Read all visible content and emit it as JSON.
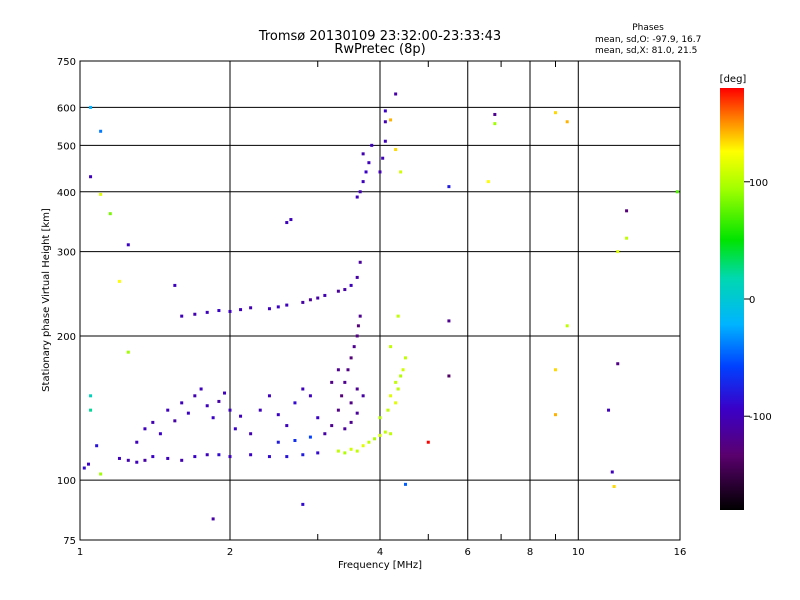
{
  "chart_data": [
    {
      "type": "scatter",
      "title": "Tromsø 20130109 23:32:00-23:33:43",
      "subtitle": "RwPretec (8p)",
      "xlabel": "Frequency [MHz]",
      "ylabel": "Stationary phase Virtual Height [km]",
      "x_scale": "log",
      "y_scale": "log",
      "xlim": [
        1,
        16
      ],
      "ylim": [
        75,
        750
      ],
      "x_ticks": [
        1,
        2,
        4,
        6,
        8,
        10,
        16
      ],
      "x_tick_labels": [
        "1",
        "2",
        "4",
        "6",
        "8",
        "10",
        "16"
      ],
      "x_minor_ticks": [
        3,
        5,
        7,
        9
      ],
      "y_ticks": [
        75,
        100,
        200,
        300,
        400,
        500,
        600,
        750
      ],
      "y_tick_labels": [
        "75",
        "100",
        "200",
        "300",
        "400",
        "500",
        "600",
        "750"
      ],
      "grid": true,
      "stats_heading": "Phases",
      "stats_lines": [
        "mean, sd,O: -97.9, 16.7",
        "mean, sd,X:  81.0, 21.5"
      ],
      "color_metric": "phase (deg)",
      "series": [
        {
          "points": [
            [
              1.02,
              106,
              -90
            ],
            [
              1.04,
              108,
              -95
            ],
            [
              1.08,
              118,
              -85
            ],
            [
              1.2,
              111,
              -100
            ],
            [
              1.25,
              110,
              -105
            ],
            [
              1.3,
              109,
              -100
            ],
            [
              1.35,
              110,
              -110
            ],
            [
              1.4,
              112,
              -95
            ],
            [
              1.5,
              111,
              -100
            ],
            [
              1.6,
              110,
              -105
            ],
            [
              1.7,
              112,
              -95
            ],
            [
              1.8,
              113,
              -100
            ],
            [
              1.9,
              113,
              -90
            ],
            [
              2.0,
              112,
              -100
            ],
            [
              2.2,
              113,
              -95
            ],
            [
              2.4,
              112,
              -90
            ],
            [
              2.6,
              112,
              -85
            ],
            [
              2.8,
              113,
              -80
            ],
            [
              3.0,
              114,
              -90
            ],
            [
              1.3,
              120,
              -100
            ],
            [
              1.35,
              128,
              -100
            ],
            [
              1.4,
              132,
              -105
            ],
            [
              1.45,
              125,
              -95
            ],
            [
              1.5,
              140,
              -100
            ],
            [
              1.55,
              133,
              -110
            ],
            [
              1.6,
              145,
              -100
            ],
            [
              1.65,
              138,
              -95
            ],
            [
              1.7,
              150,
              -105
            ],
            [
              1.75,
              155,
              -100
            ],
            [
              1.8,
              143,
              -100
            ],
            [
              1.85,
              135,
              -95
            ],
            [
              1.9,
              146,
              -110
            ],
            [
              1.95,
              152,
              -100
            ],
            [
              2.0,
              140,
              -100
            ],
            [
              2.05,
              128,
              -95
            ],
            [
              2.1,
              136,
              -100
            ],
            [
              2.2,
              125,
              -105
            ],
            [
              2.3,
              140,
              -100
            ],
            [
              2.4,
              150,
              -100
            ],
            [
              2.5,
              137,
              -95
            ],
            [
              2.6,
              130,
              -100
            ],
            [
              2.7,
              145,
              -90
            ],
            [
              2.8,
              155,
              -100
            ],
            [
              2.9,
              150,
              -100
            ],
            [
              3.0,
              135,
              -95
            ],
            [
              2.5,
              120,
              -80
            ],
            [
              2.7,
              121,
              -70
            ],
            [
              2.9,
              123,
              -60
            ],
            [
              3.1,
              125,
              -110
            ],
            [
              3.2,
              130,
              -120
            ],
            [
              3.3,
              140,
              -125
            ],
            [
              3.35,
              150,
              -130
            ],
            [
              3.4,
              160,
              -120
            ],
            [
              3.45,
              170,
              -125
            ],
            [
              3.5,
              180,
              -130
            ],
            [
              3.55,
              190,
              -120
            ],
            [
              3.6,
              200,
              -125
            ],
            [
              3.62,
              210,
              -130
            ],
            [
              3.65,
              220,
              -120
            ],
            [
              3.2,
              160,
              -125
            ],
            [
              3.3,
              170,
              -120
            ],
            [
              3.5,
              145,
              -125
            ],
            [
              3.6,
              155,
              -120
            ],
            [
              3.7,
              150,
              -110
            ],
            [
              3.4,
              128,
              -115
            ],
            [
              3.5,
              132,
              -120
            ],
            [
              3.6,
              138,
              -115
            ],
            [
              3.3,
              115,
              100
            ],
            [
              3.4,
              114,
              95
            ],
            [
              3.5,
              116,
              105
            ],
            [
              3.6,
              115,
              100
            ],
            [
              3.7,
              118,
              110
            ],
            [
              3.8,
              120,
              100
            ],
            [
              3.9,
              122,
              95
            ],
            [
              4.0,
              124,
              105
            ],
            [
              4.1,
              126,
              100
            ],
            [
              4.2,
              125,
              100
            ],
            [
              4.0,
              135,
              95
            ],
            [
              4.15,
              140,
              100
            ],
            [
              4.3,
              145,
              110
            ],
            [
              4.35,
              155,
              100
            ],
            [
              4.4,
              165,
              95
            ],
            [
              4.45,
              170,
              105
            ],
            [
              4.5,
              180,
              100
            ],
            [
              4.3,
              160,
              100
            ],
            [
              4.2,
              150,
              110
            ],
            [
              1.6,
              220,
              -100
            ],
            [
              1.7,
              222,
              -105
            ],
            [
              1.8,
              224,
              -100
            ],
            [
              1.9,
              226,
              -95
            ],
            [
              2.0,
              225,
              -100
            ],
            [
              2.1,
              227,
              -100
            ],
            [
              2.2,
              229,
              -105
            ],
            [
              2.4,
              228,
              -100
            ],
            [
              2.5,
              230,
              -95
            ],
            [
              2.6,
              232,
              -100
            ],
            [
              2.8,
              235,
              -110
            ],
            [
              2.9,
              238,
              -115
            ],
            [
              3.0,
              240,
              -110
            ],
            [
              3.1,
              243,
              -105
            ],
            [
              3.3,
              248,
              -115
            ],
            [
              3.4,
              250,
              -110
            ],
            [
              3.5,
              255,
              -100
            ],
            [
              3.6,
              265,
              -110
            ],
            [
              3.65,
              285,
              -115
            ],
            [
              3.6,
              390,
              -100
            ],
            [
              3.65,
              400,
              -105
            ],
            [
              3.7,
              420,
              -100
            ],
            [
              3.75,
              440,
              -95
            ],
            [
              3.8,
              460,
              -100
            ],
            [
              3.7,
              480,
              -105
            ],
            [
              3.85,
              500,
              -100
            ],
            [
              4.0,
              440,
              -105
            ],
            [
              4.05,
              470,
              -100
            ],
            [
              4.1,
              510,
              -100
            ],
            [
              4.1,
              560,
              -105
            ],
            [
              4.1,
              590,
              -95
            ],
            [
              1.05,
              430,
              -100
            ],
            [
              1.25,
              310,
              -95
            ],
            [
              1.55,
              255,
              -100
            ],
            [
              2.6,
              345,
              -100
            ],
            [
              2.65,
              350,
              -100
            ],
            [
              4.3,
              640,
              -110
            ],
            [
              5.5,
              410,
              -80
            ],
            [
              6.8,
              580,
              -120
            ],
            [
              5.5,
              215,
              -120
            ],
            [
              12.5,
              365,
              -130
            ],
            [
              12.0,
              175,
              -125
            ],
            [
              11.5,
              140,
              -100
            ],
            [
              11.7,
              104,
              -100
            ],
            [
              1.85,
              83,
              -110
            ],
            [
              2.8,
              89,
              -90
            ],
            [
              4.5,
              98,
              -50
            ],
            [
              5.5,
              165,
              -140
            ],
            [
              1.1,
              535,
              -40
            ],
            [
              1.05,
              600,
              -20
            ],
            [
              1.1,
              395,
              110
            ],
            [
              1.15,
              360,
              80
            ],
            [
              1.2,
              260,
              120
            ],
            [
              1.05,
              150,
              10
            ],
            [
              1.1,
              103,
              90
            ],
            [
              4.2,
              565,
              140
            ],
            [
              4.3,
              490,
              130
            ],
            [
              4.4,
              440,
              105
            ],
            [
              4.35,
              220,
              100
            ],
            [
              4.2,
              190,
              100
            ],
            [
              5.0,
              120,
              180
            ],
            [
              6.6,
              420,
              120
            ],
            [
              6.8,
              555,
              90
            ],
            [
              9.0,
              585,
              130
            ],
            [
              9.5,
              560,
              140
            ],
            [
              9.5,
              210,
              100
            ],
            [
              9.0,
              170,
              130
            ],
            [
              9.0,
              137,
              140
            ],
            [
              11.8,
              97,
              130
            ],
            [
              12.0,
              300,
              110
            ],
            [
              12.5,
              320,
              100
            ],
            [
              15.8,
              400,
              70
            ],
            [
              1.25,
              185,
              90
            ],
            [
              1.05,
              140,
              20
            ]
          ]
        }
      ],
      "colorbar": {
        "label": "[deg]",
        "range": [
          -180,
          180
        ],
        "tick_values": [
          100,
          0,
          -100
        ],
        "tick_labels": [
          "100",
          "0",
          "-100"
        ]
      }
    }
  ]
}
